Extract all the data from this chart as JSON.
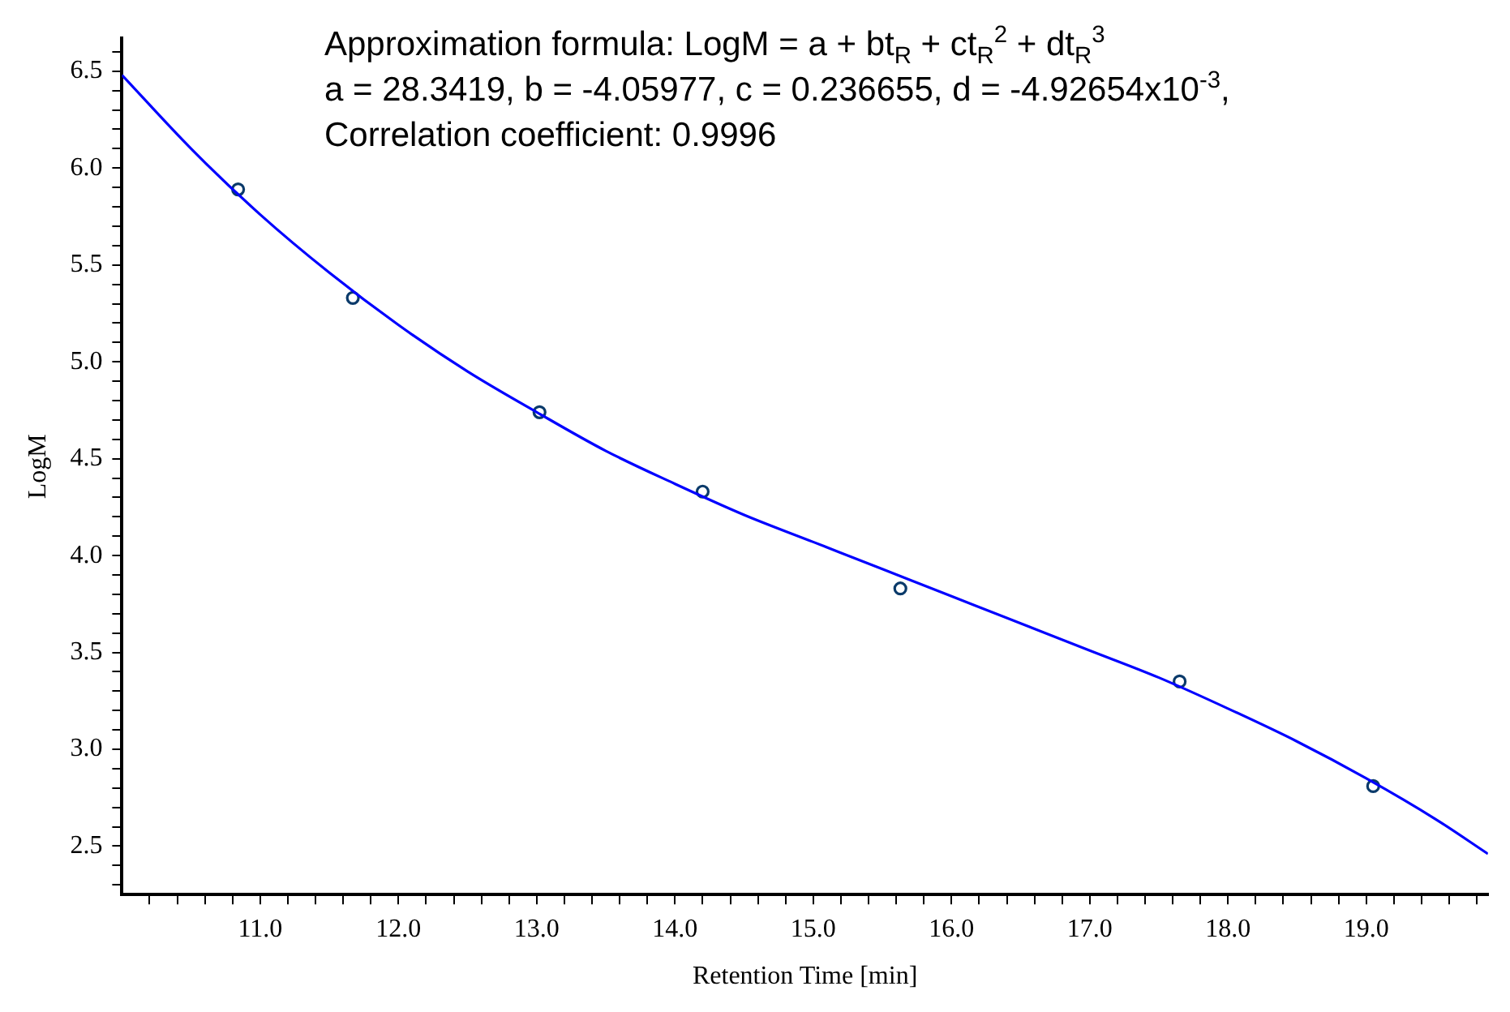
{
  "chart_data": {
    "type": "scatter",
    "xlabel": "Retention Time [min]",
    "ylabel": "LogM",
    "annotations": [
      "Approximation formula: LogM = a + bt$_{R}$ + ct$_{R}$$^{2}$ + dt$_{R}$$^{3}$",
      "a = 28.3419, b = -4.05977, c = 0.236655, d = -4.92654x10$^{-3}$,",
      "Correlation coefficient: 0.9996"
    ],
    "xlim": [
      10.0,
      19.88
    ],
    "ylim": [
      2.25,
      6.67
    ],
    "xticks": [
      {
        "value": 10.2,
        "label": null
      },
      {
        "value": 10.4,
        "label": null
      },
      {
        "value": 10.6,
        "label": null
      },
      {
        "value": 10.8,
        "label": null
      },
      {
        "value": 11,
        "label": "11.0"
      },
      {
        "value": 11.2,
        "label": null
      },
      {
        "value": 11.4,
        "label": null
      },
      {
        "value": 11.6,
        "label": null
      },
      {
        "value": 11.8,
        "label": null
      },
      {
        "value": 12,
        "label": "12.0"
      },
      {
        "value": 12.2,
        "label": null
      },
      {
        "value": 12.4,
        "label": null
      },
      {
        "value": 12.6,
        "label": null
      },
      {
        "value": 12.8,
        "label": null
      },
      {
        "value": 13,
        "label": "13.0"
      },
      {
        "value": 13.2,
        "label": null
      },
      {
        "value": 13.4,
        "label": null
      },
      {
        "value": 13.6,
        "label": null
      },
      {
        "value": 13.8,
        "label": null
      },
      {
        "value": 14,
        "label": "14.0"
      },
      {
        "value": 14.2,
        "label": null
      },
      {
        "value": 14.4,
        "label": null
      },
      {
        "value": 14.6,
        "label": null
      },
      {
        "value": 14.8,
        "label": null
      },
      {
        "value": 15,
        "label": "15.0"
      },
      {
        "value": 15.2,
        "label": null
      },
      {
        "value": 15.4,
        "label": null
      },
      {
        "value": 15.6,
        "label": null
      },
      {
        "value": 15.8,
        "label": null
      },
      {
        "value": 16,
        "label": "16.0"
      },
      {
        "value": 16.2,
        "label": null
      },
      {
        "value": 16.4,
        "label": null
      },
      {
        "value": 16.6,
        "label": null
      },
      {
        "value": 16.8,
        "label": null
      },
      {
        "value": 17,
        "label": "17.0"
      },
      {
        "value": 17.2,
        "label": null
      },
      {
        "value": 17.4,
        "label": null
      },
      {
        "value": 17.6,
        "label": null
      },
      {
        "value": 17.8,
        "label": null
      },
      {
        "value": 18,
        "label": "18.0"
      },
      {
        "value": 18.2,
        "label": null
      },
      {
        "value": 18.4,
        "label": null
      },
      {
        "value": 18.6,
        "label": null
      },
      {
        "value": 18.8,
        "label": null
      },
      {
        "value": 19,
        "label": "19.0"
      },
      {
        "value": 19.2,
        "label": null
      },
      {
        "value": 19.4,
        "label": null
      },
      {
        "value": 19.6,
        "label": null
      },
      {
        "value": 19.8,
        "label": null
      }
    ],
    "yticks": [
      {
        "value": 2.3,
        "label": null
      },
      {
        "value": 2.4,
        "label": null
      },
      {
        "value": 2.5,
        "label": "2.5"
      },
      {
        "value": 2.6,
        "label": null
      },
      {
        "value": 2.7,
        "label": null
      },
      {
        "value": 2.8,
        "label": null
      },
      {
        "value": 2.9,
        "label": null
      },
      {
        "value": 3,
        "label": "3.0"
      },
      {
        "value": 3.1,
        "label": null
      },
      {
        "value": 3.2,
        "label": null
      },
      {
        "value": 3.3,
        "label": null
      },
      {
        "value": 3.4,
        "label": null
      },
      {
        "value": 3.5,
        "label": "3.5"
      },
      {
        "value": 3.6,
        "label": null
      },
      {
        "value": 3.7,
        "label": null
      },
      {
        "value": 3.8,
        "label": null
      },
      {
        "value": 3.9,
        "label": null
      },
      {
        "value": 4,
        "label": "4.0"
      },
      {
        "value": 4.1,
        "label": null
      },
      {
        "value": 4.2,
        "label": null
      },
      {
        "value": 4.3,
        "label": null
      },
      {
        "value": 4.4,
        "label": null
      },
      {
        "value": 4.5,
        "label": "4.5"
      },
      {
        "value": 4.6,
        "label": null
      },
      {
        "value": 4.7,
        "label": null
      },
      {
        "value": 4.8,
        "label": null
      },
      {
        "value": 4.9,
        "label": null
      },
      {
        "value": 5,
        "label": "5.0"
      },
      {
        "value": 5.1,
        "label": null
      },
      {
        "value": 5.2,
        "label": null
      },
      {
        "value": 5.3,
        "label": null
      },
      {
        "value": 5.4,
        "label": null
      },
      {
        "value": 5.5,
        "label": "5.5"
      },
      {
        "value": 5.6,
        "label": null
      },
      {
        "value": 5.7,
        "label": null
      },
      {
        "value": 5.8,
        "label": null
      },
      {
        "value": 5.9,
        "label": null
      },
      {
        "value": 6,
        "label": "6.0"
      },
      {
        "value": 6.1,
        "label": null
      },
      {
        "value": 6.2,
        "label": null
      },
      {
        "value": 6.3,
        "label": null
      },
      {
        "value": 6.4,
        "label": null
      },
      {
        "value": 6.5,
        "label": "6.5"
      },
      {
        "value": 6.6,
        "label": null
      }
    ],
    "grid": false,
    "legend": false,
    "series": [
      {
        "type": "line",
        "color": "#0000ff",
        "marker": "none",
        "line_style": "solid",
        "x": [
          10.0,
          10.5,
          11.0,
          11.5,
          12.0,
          12.5,
          13.0,
          13.5,
          14.0,
          14.5,
          15.0,
          15.5,
          16.0,
          16.5,
          17.0,
          17.5,
          18.0,
          18.5,
          19.0,
          19.5,
          19.88
        ],
        "values": [
          6.48,
          6.1,
          5.76,
          5.46,
          5.19,
          4.95,
          4.74,
          4.54,
          4.37,
          4.21,
          4.07,
          3.93,
          3.79,
          3.65,
          3.51,
          3.37,
          3.21,
          3.04,
          2.85,
          2.64,
          2.46
        ]
      },
      {
        "color": "#0a3a6a",
        "marker": "circle",
        "x": [
          10.84,
          11.67,
          13.02,
          14.2,
          15.63,
          17.65,
          19.05
        ],
        "values": [
          5.89,
          5.33,
          4.74,
          4.33,
          3.83,
          3.35,
          2.81
        ]
      }
    ]
  }
}
